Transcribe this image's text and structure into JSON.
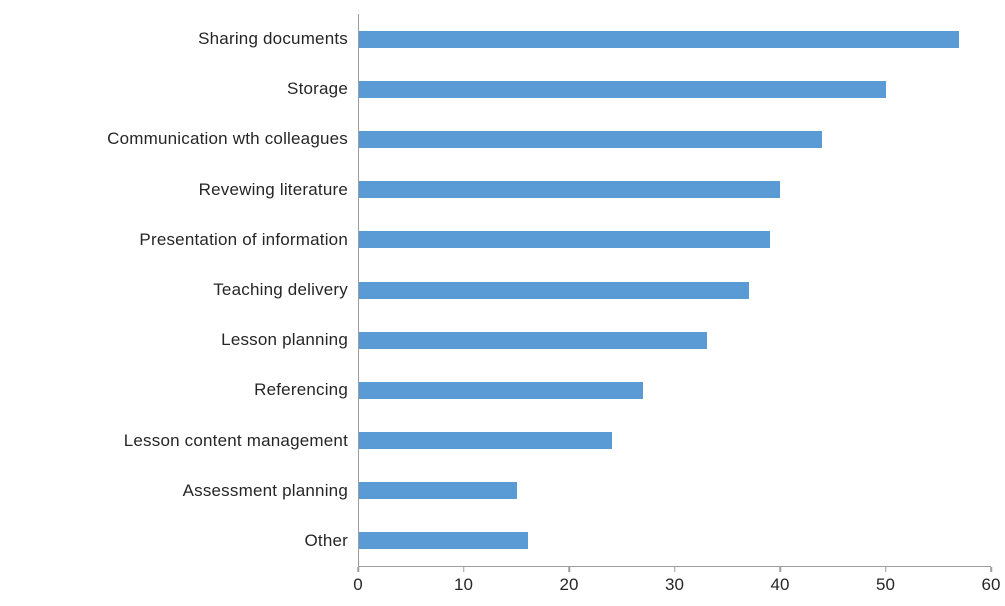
{
  "chart_data": {
    "type": "bar",
    "orientation": "horizontal",
    "title": "",
    "xlabel": "",
    "ylabel": "",
    "categories": [
      "Sharing documents",
      "Storage",
      "Communication wth colleagues",
      "Revewing literature",
      "Presentation of information",
      "Teaching delivery",
      "Lesson planning",
      "Referencing",
      "Lesson content management",
      "Assessment planning",
      "Other"
    ],
    "values": [
      57,
      50,
      44,
      40,
      39,
      37,
      33,
      27,
      24,
      15,
      16
    ],
    "xlim": [
      0,
      60
    ],
    "xticks": [
      0,
      10,
      20,
      30,
      40,
      50,
      60
    ],
    "grid": false,
    "legend": false,
    "bar_color": "#5B9BD5",
    "axis_color": "#9d9d9d",
    "text_color": "#262626"
  }
}
